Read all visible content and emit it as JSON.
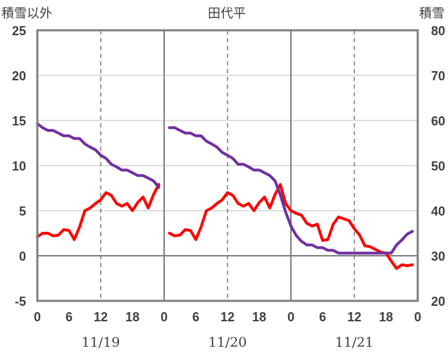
{
  "chart_data": {
    "type": "line",
    "title": "田代平",
    "left_axis_label": "積雪以外",
    "right_axis_label": "積雪",
    "left_ylim": [
      -5,
      25
    ],
    "left_yticks": [
      "-5",
      "0",
      "5",
      "10",
      "15",
      "20",
      "25"
    ],
    "right_ylim": [
      20,
      80
    ],
    "right_yticks": [
      "20",
      "30",
      "40",
      "50",
      "60",
      "70",
      "80"
    ],
    "x_range_hours": [
      0,
      72
    ],
    "x_tick_labels": [
      "0",
      "6",
      "12",
      "18",
      "0",
      "6",
      "12",
      "18",
      "0",
      "6",
      "12",
      "18",
      "0"
    ],
    "day_labels": [
      "11/19",
      "11/20",
      "11/21"
    ],
    "grid": true,
    "colors": {
      "temperature": "#ff0000",
      "snow_depth": "#7030a0",
      "frame": "#7f7f7f"
    },
    "series": [
      {
        "key": "temperature",
        "axis": "left",
        "segments": [
          {
            "x": [
              0,
              1,
              2,
              3,
              4,
              5,
              6,
              7,
              8,
              9,
              10,
              11,
              12,
              13,
              14,
              15,
              16,
              17,
              18,
              19,
              20,
              21,
              22,
              23
            ],
            "y": [
              2.1,
              2.5,
              2.5,
              2.2,
              2.3,
              2.9,
              2.8,
              1.8,
              3.2,
              5.0,
              5.3,
              5.8,
              6.2,
              7.0,
              6.7,
              5.8,
              5.5,
              5.8,
              5.0,
              5.9,
              6.5,
              5.3,
              6.8,
              7.9
            ]
          },
          {
            "x": [
              25,
              26,
              27,
              28,
              29,
              30,
              31,
              32,
              33,
              34,
              35,
              36,
              37,
              38,
              39,
              40,
              41,
              42,
              43,
              44,
              45,
              46,
              47,
              48,
              49,
              50,
              51,
              52,
              53,
              54,
              55,
              56,
              57,
              58,
              59,
              60,
              61,
              62,
              63,
              64,
              65,
              66,
              67,
              68,
              69,
              70,
              71
            ],
            "y": [
              2.5,
              2.2,
              2.3,
              2.9,
              2.8,
              1.8,
              3.2,
              5.0,
              5.3,
              5.8,
              6.2,
              7.0,
              6.7,
              5.8,
              5.5,
              5.8,
              5.0,
              5.9,
              6.5,
              5.3,
              6.8,
              7.9,
              5.8,
              5.0,
              4.7,
              4.5,
              3.6,
              3.3,
              3.5,
              1.7,
              1.8,
              3.5,
              4.3,
              4.1,
              3.9,
              3.0,
              2.3,
              1.1,
              1.0,
              0.7,
              0.4,
              0.3,
              -0.6,
              -1.4,
              -1.0,
              -1.1,
              -1.0
            ]
          }
        ]
      },
      {
        "key": "snow_depth",
        "axis": "right",
        "segments": [
          {
            "x": [
              0,
              1,
              2,
              3,
              4,
              5,
              6,
              7,
              8,
              9,
              10,
              11,
              12,
              13,
              14,
              15,
              16,
              17,
              18,
              19,
              20,
              21,
              22,
              23
            ],
            "y": [
              59.3,
              58.4,
              57.8,
              57.8,
              57.2,
              56.6,
              56.6,
              56.0,
              56.0,
              54.8,
              54.1,
              53.5,
              52.3,
              51.6,
              50.3,
              49.7,
              49.0,
              49.0,
              48.4,
              47.8,
              47.8,
              47.2,
              46.6,
              45.2
            ]
          },
          {
            "x": [
              25,
              26,
              27,
              28,
              29,
              30,
              31,
              32,
              33,
              34,
              35,
              36,
              37,
              38,
              39,
              40,
              41,
              42,
              43,
              44,
              45,
              46,
              47,
              48,
              49,
              50,
              51,
              52,
              53,
              54,
              55,
              56,
              57,
              58,
              59,
              60,
              61,
              62,
              63,
              64,
              65,
              66,
              67,
              68,
              69,
              70,
              71
            ],
            "y": [
              58.4,
              58.4,
              57.8,
              57.2,
              57.2,
              56.6,
              56.6,
              55.4,
              54.8,
              54.1,
              52.9,
              52.3,
              51.6,
              50.3,
              50.3,
              49.7,
              49.0,
              49.0,
              48.4,
              47.8,
              46.6,
              43.5,
              39.7,
              36.6,
              34.5,
              33.2,
              32.4,
              32.4,
              31.8,
              31.8,
              31.2,
              31.2,
              30.6,
              30.6,
              30.6,
              30.6,
              30.6,
              30.6,
              30.6,
              30.6,
              30.6,
              30.6,
              30.6,
              32.4,
              33.5,
              34.8,
              35.4
            ]
          }
        ]
      }
    ]
  }
}
